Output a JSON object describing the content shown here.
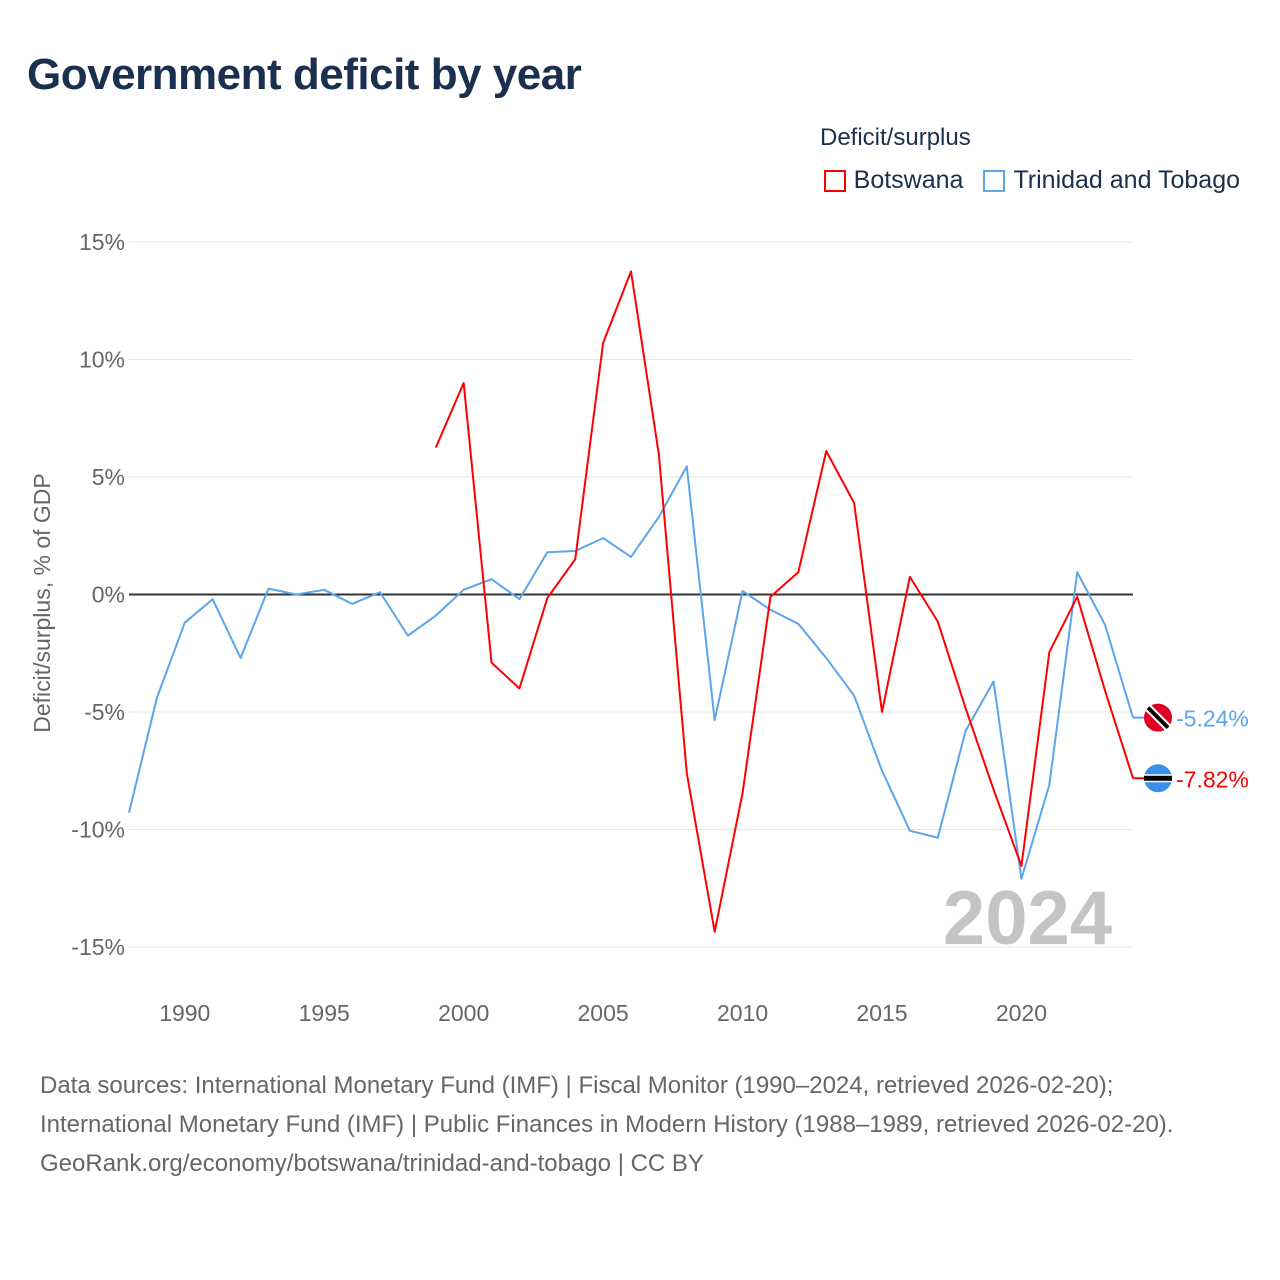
{
  "title": "Government deficit by year",
  "legend": {
    "title": "Deficit/surplus",
    "items": [
      {
        "label": "Botswana",
        "color": "#ff0000"
      },
      {
        "label": "Trinidad and Tobago",
        "color": "#5aa5eb"
      }
    ]
  },
  "year_watermark": "2024",
  "footer": {
    "sources": "Data sources: International Monetary Fund (IMF) | Fiscal Monitor (1990–2024, retrieved 2026-02-20); International Monetary Fund (IMF) | Public Finances in Modern History (1988–1989, retrieved 2026-02-20).",
    "credit": "GeoRank.org/economy/botswana/trinidad-and-tobago | CC BY"
  },
  "chart_data": {
    "type": "line",
    "title": "Government deficit by year",
    "xlabel": "",
    "ylabel": "Deficit/surplus, % of GDP",
    "xlim": [
      1988,
      2024
    ],
    "ylim": [
      -15,
      15
    ],
    "yticks": [
      15,
      10,
      5,
      0,
      -5,
      -10,
      -15
    ],
    "ytick_labels": [
      "15%",
      "10%",
      "5%",
      "0%",
      "-5%",
      "-10%",
      "-15%"
    ],
    "xticks": [
      1990,
      1995,
      2000,
      2005,
      2010,
      2015,
      2020
    ],
    "xtick_labels": [
      "1990",
      "1995",
      "2000",
      "2005",
      "2010",
      "2015",
      "2020"
    ],
    "grid": true,
    "legend_position": "top-right",
    "series": [
      {
        "name": "Trinidad and Tobago",
        "color": "#5aa5eb",
        "end_label": "-5.24%",
        "x": [
          1988,
          1989,
          1990,
          1991,
          1992,
          1993,
          1994,
          1995,
          1996,
          1997,
          1998,
          1999,
          2000,
          2001,
          2002,
          2003,
          2004,
          2005,
          2006,
          2007,
          2008,
          2009,
          2010,
          2011,
          2012,
          2013,
          2014,
          2015,
          2016,
          2017,
          2018,
          2019,
          2020,
          2021,
          2022,
          2023,
          2024
        ],
        "values": [
          -9.28,
          -4.4,
          -1.2,
          -0.2,
          -2.7,
          0.25,
          0,
          0.2,
          -0.4,
          0.1,
          -1.75,
          -0.9,
          0.2,
          0.65,
          -0.2,
          1.8,
          1.85,
          2.4,
          1.6,
          3.3,
          5.45,
          -5.35,
          0.15,
          -0.65,
          -1.25,
          -2.7,
          -4.3,
          -7.5,
          -10.05,
          -10.35,
          -5.8,
          -3.7,
          -12.1,
          -8.1,
          0.95,
          -1.3,
          -5.24
        ]
      },
      {
        "name": "Botswana",
        "color": "#ff0000",
        "end_label": "-7.82%",
        "x": [
          1999,
          2000,
          2001,
          2002,
          2003,
          2004,
          2005,
          2006,
          2007,
          2008,
          2009,
          2010,
          2011,
          2012,
          2013,
          2014,
          2015,
          2016,
          2017,
          2018,
          2019,
          2020,
          2021,
          2022,
          2023,
          2024
        ],
        "values": [
          6.25,
          9.0,
          -2.9,
          -4.0,
          -0.15,
          1.5,
          10.7,
          13.75,
          5.95,
          -7.6,
          -14.35,
          -8.45,
          -0.1,
          0.95,
          6.1,
          3.9,
          -5.0,
          0.75,
          -1.15,
          -4.85,
          -8.3,
          -11.55,
          -2.45,
          -0.1,
          -4.1,
          -7.82
        ]
      }
    ]
  }
}
